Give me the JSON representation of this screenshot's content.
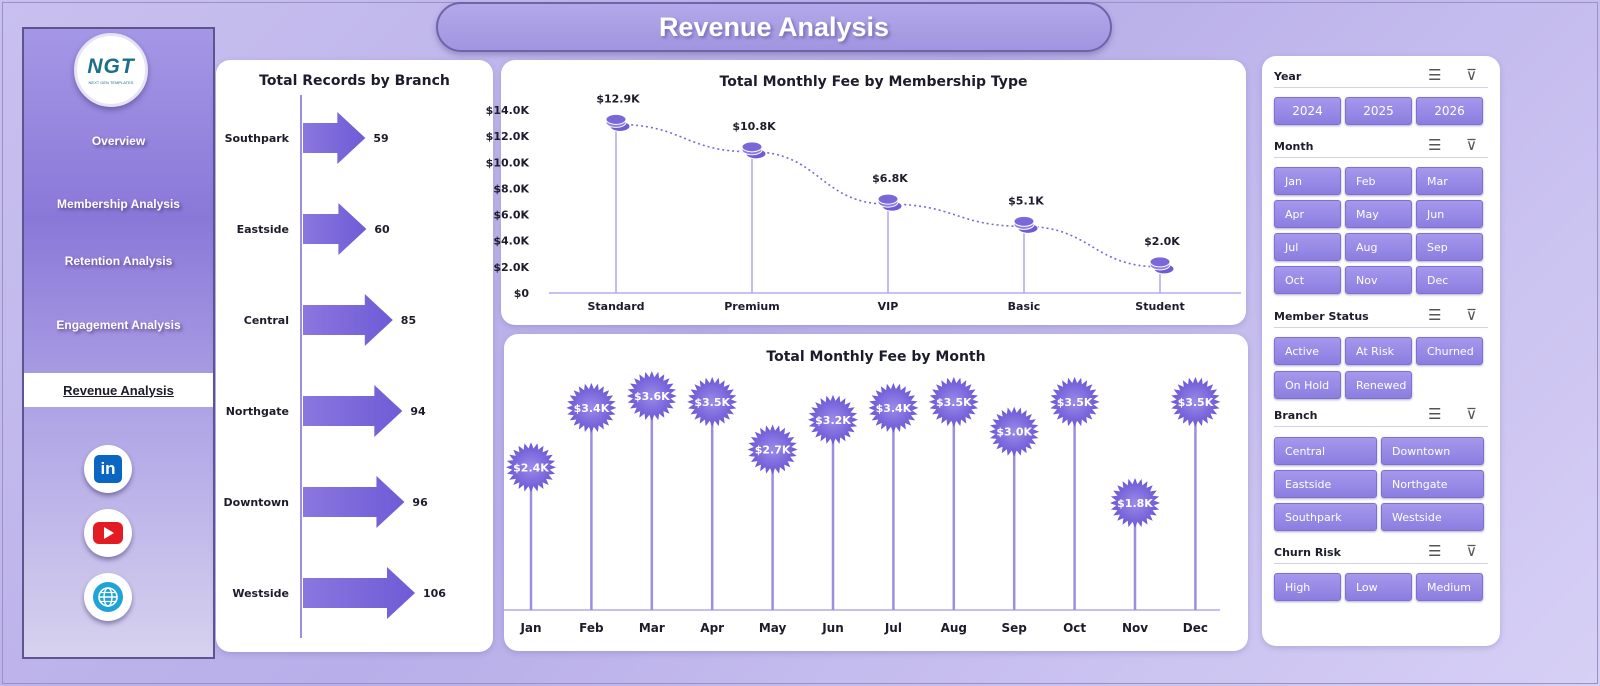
{
  "header": {
    "title": "Revenue Analysis"
  },
  "logo": {
    "main": "NGT",
    "sub": "NEXT GEN TEMPLATES"
  },
  "sidebar": {
    "items": [
      {
        "label": "Overview"
      },
      {
        "label": "Membership Analysis"
      },
      {
        "label": "Retention Analysis"
      },
      {
        "label": "Engagement Analysis"
      },
      {
        "label": "Revenue Analysis",
        "active": true
      }
    ],
    "social": [
      {
        "icon": "linkedin-icon",
        "label": "in",
        "color": "#0a66c2"
      },
      {
        "icon": "youtube-icon",
        "color": "#e31b23"
      },
      {
        "icon": "globe-icon",
        "color": "#1fa3d8"
      }
    ]
  },
  "slicers": {
    "year": {
      "title": "Year",
      "options": [
        "2024",
        "2025",
        "2026"
      ]
    },
    "month": {
      "title": "Month",
      "options": [
        "Jan",
        "Feb",
        "Mar",
        "Apr",
        "May",
        "Jun",
        "Jul",
        "Aug",
        "Sep",
        "Oct",
        "Nov",
        "Dec"
      ]
    },
    "status": {
      "title": "Member Status",
      "options": [
        "Active",
        "At Risk",
        "Churned",
        "On Hold",
        "Renewed"
      ]
    },
    "branch": {
      "title": "Branch",
      "options": [
        "Central",
        "Downtown",
        "Eastside",
        "Northgate",
        "Southpark",
        "Westside"
      ]
    },
    "churn": {
      "title": "Churn Risk",
      "options": [
        "High",
        "Low",
        "Medium"
      ]
    }
  },
  "colors": {
    "accent": "#7b68d8",
    "accent_light": "#a596ec",
    "stem": "#9c8fe0"
  },
  "chart_data": [
    {
      "type": "bar",
      "orientation": "horizontal",
      "title": "Total Records by Branch",
      "categories": [
        "Southpark",
        "Eastside",
        "Central",
        "Northgate",
        "Downtown",
        "Westside"
      ],
      "values": [
        59,
        60,
        85,
        94,
        96,
        106
      ],
      "labels": [
        "59",
        "60",
        "85",
        "94",
        "96",
        "106"
      ]
    },
    {
      "type": "line",
      "title": "Total Monthly Fee by Membership Type",
      "categories": [
        "Standard",
        "Premium",
        "VIP",
        "Basic",
        "Student"
      ],
      "values": [
        12900,
        10800,
        6800,
        5100,
        2000
      ],
      "labels": [
        "$12.9K",
        "$10.8K",
        "$6.8K",
        "$5.1K",
        "$2.0K"
      ],
      "ylim": [
        0,
        14000
      ],
      "yticks": [
        0,
        2000,
        4000,
        6000,
        8000,
        10000,
        12000,
        14000
      ],
      "yticklabels": [
        "$0",
        "$2.0K",
        "$4.0K",
        "$6.0K",
        "$8.0K",
        "$10.0K",
        "$12.0K",
        "$14.0K"
      ]
    },
    {
      "type": "bar",
      "style": "lollipop",
      "title": "Total Monthly Fee by Month",
      "categories": [
        "Jan",
        "Feb",
        "Mar",
        "Apr",
        "May",
        "Jun",
        "Jul",
        "Aug",
        "Sep",
        "Oct",
        "Nov",
        "Dec"
      ],
      "values": [
        2400,
        3400,
        3600,
        3500,
        2700,
        3200,
        3400,
        3500,
        3000,
        3500,
        1800,
        3500
      ],
      "labels": [
        "$2.4K",
        "$3.4K",
        "$3.6K",
        "$3.5K",
        "$2.7K",
        "$3.2K",
        "$3.4K",
        "$3.5K",
        "$3.0K",
        "$3.5K",
        "$1.8K",
        "$3.5K"
      ]
    }
  ]
}
